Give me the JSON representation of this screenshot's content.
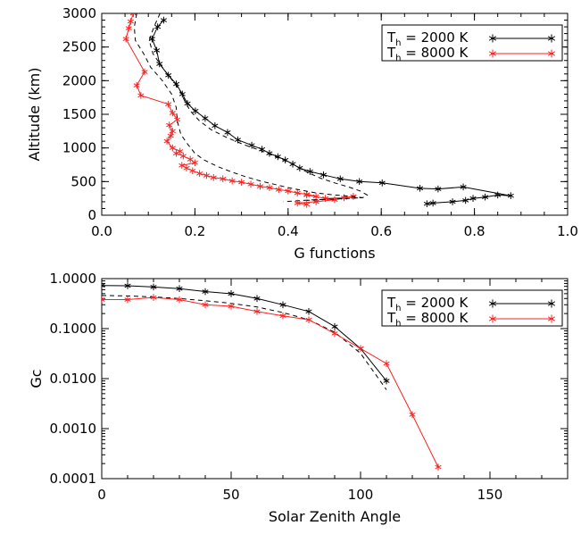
{
  "colors": {
    "black": "#000000",
    "red": "#ff2020"
  },
  "chart_data": [
    {
      "type": "line",
      "xlabel": "G functions",
      "ylabel": "Altitude (km)",
      "xlim": [
        0.0,
        1.0
      ],
      "ylim": [
        0,
        3000
      ],
      "xticks": [
        "0.0",
        "0.2",
        "0.4",
        "0.6",
        "0.8",
        "1.0"
      ],
      "yticks": [
        "0",
        "500",
        "1000",
        "1500",
        "2000",
        "2500",
        "3000"
      ],
      "legend_position": "top-right",
      "legend": [
        {
          "label": "T",
          "sub": "h",
          "rest": " = 2000 K",
          "color": "#000000"
        },
        {
          "label": "T",
          "sub": "h",
          "rest": " = 8000 K",
          "color": "#ff2020"
        }
      ],
      "series": [
        {
          "color": "#000000",
          "marker": "asterisk",
          "x": [
            0.133,
            0.12,
            0.108,
            0.118,
            0.124,
            0.143,
            0.16,
            0.173,
            0.184,
            0.201,
            0.222,
            0.243,
            0.27,
            0.292,
            0.322,
            0.344,
            0.36,
            0.378,
            0.394,
            0.41,
            0.425,
            0.447,
            0.476,
            0.512,
            0.553,
            0.602,
            0.683,
            0.722,
            0.776,
            0.878,
            0.85,
            0.823,
            0.797,
            0.781,
            0.753,
            0.711,
            0.698
          ],
          "y": [
            2900,
            2800,
            2620,
            2450,
            2250,
            2080,
            1950,
            1800,
            1660,
            1550,
            1440,
            1330,
            1230,
            1120,
            1040,
            980,
            920,
            870,
            820,
            760,
            700,
            650,
            600,
            540,
            500,
            480,
            400,
            390,
            420,
            290,
            300,
            270,
            250,
            220,
            200,
            180,
            170
          ]
        },
        {
          "color": "#000000",
          "dashed": true,
          "marker": "none",
          "x": [
            0.125,
            0.112,
            0.102,
            0.11,
            0.13,
            0.152,
            0.168,
            0.178,
            0.19,
            0.21,
            0.235,
            0.27,
            0.305,
            0.345,
            0.38,
            0.41,
            0.43,
            0.45,
            0.47,
            0.5,
            0.53,
            0.555,
            0.57,
            0.56,
            0.49,
            0.43,
            0.39
          ],
          "y": [
            3000,
            2800,
            2600,
            2400,
            2200,
            2000,
            1850,
            1700,
            1550,
            1400,
            1270,
            1150,
            1050,
            950,
            850,
            760,
            680,
            610,
            550,
            480,
            420,
            360,
            300,
            260,
            240,
            220,
            200
          ]
        },
        {
          "color": "#ff2020",
          "marker": "asterisk",
          "x": [
            0.068,
            0.062,
            0.058,
            0.052,
            0.092,
            0.075,
            0.084,
            0.143,
            0.152,
            0.162,
            0.145,
            0.152,
            0.148,
            0.14,
            0.152,
            0.168,
            0.16,
            0.175,
            0.19,
            0.2,
            0.172,
            0.182,
            0.195,
            0.21,
            0.225,
            0.24,
            0.26,
            0.28,
            0.3,
            0.32,
            0.34,
            0.36,
            0.38,
            0.4,
            0.42,
            0.44,
            0.46,
            0.44,
            0.48,
            0.52,
            0.54,
            0.5,
            0.46,
            0.42,
            0.44
          ],
          "y": [
            3000,
            2880,
            2780,
            2620,
            2130,
            1930,
            1780,
            1650,
            1520,
            1420,
            1340,
            1250,
            1180,
            1100,
            1000,
            950,
            920,
            880,
            830,
            780,
            740,
            700,
            660,
            620,
            590,
            560,
            540,
            510,
            490,
            460,
            430,
            410,
            380,
            360,
            330,
            310,
            280,
            300,
            250,
            260,
            280,
            230,
            200,
            180,
            160
          ]
        },
        {
          "color": "#000000",
          "dashed": true,
          "marker": "none",
          "x": [
            0.075,
            0.07,
            0.072,
            0.09,
            0.105,
            0.13,
            0.15,
            0.16,
            0.162,
            0.17,
            0.185,
            0.2,
            0.22,
            0.25,
            0.28,
            0.31,
            0.34,
            0.37,
            0.4,
            0.43,
            0.46,
            0.5,
            0.54,
            0.56,
            0.5,
            0.44
          ],
          "y": [
            3000,
            2800,
            2600,
            2400,
            2200,
            2000,
            1800,
            1600,
            1400,
            1200,
            1050,
            920,
            820,
            720,
            640,
            570,
            510,
            460,
            410,
            370,
            330,
            300,
            280,
            260,
            240,
            220
          ]
        }
      ]
    },
    {
      "type": "line",
      "xlabel": "Solar Zenith Angle",
      "ylabel": "Gc",
      "xlim": [
        0,
        180
      ],
      "ylim": [
        0.0001,
        1.0
      ],
      "yscale": "log",
      "xticks": [
        "0",
        "50",
        "100",
        "150"
      ],
      "yticks": [
        "0.0001",
        "0.0010",
        "0.0100",
        "0.1000",
        "1.0000"
      ],
      "legend_position": "top-right",
      "legend": [
        {
          "label": "T",
          "sub": "h",
          "rest": " = 2000 K",
          "color": "#000000"
        },
        {
          "label": "T",
          "sub": "h",
          "rest": " = 8000 K",
          "color": "#ff2020"
        }
      ],
      "series": [
        {
          "color": "#000000",
          "marker": "asterisk",
          "x": [
            0,
            10,
            20,
            30,
            40,
            50,
            60,
            70,
            80,
            90,
            100,
            110
          ],
          "y": [
            0.73,
            0.72,
            0.68,
            0.63,
            0.55,
            0.5,
            0.4,
            0.3,
            0.22,
            0.11,
            0.04,
            0.009
          ]
        },
        {
          "color": "#000000",
          "dashed": true,
          "marker": "none",
          "x": [
            0,
            10,
            20,
            30,
            40,
            50,
            60,
            70,
            80,
            90,
            100,
            110
          ],
          "y": [
            0.46,
            0.45,
            0.43,
            0.4,
            0.36,
            0.32,
            0.27,
            0.21,
            0.15,
            0.085,
            0.032,
            0.006
          ]
        },
        {
          "color": "#ff2020",
          "marker": "asterisk",
          "x": [
            0,
            10,
            20,
            30,
            40,
            50,
            60,
            70,
            80,
            90,
            100,
            110,
            120,
            130
          ],
          "y": [
            0.38,
            0.38,
            0.42,
            0.38,
            0.3,
            0.28,
            0.22,
            0.18,
            0.15,
            0.08,
            0.04,
            0.02,
            0.0019,
            0.00017
          ]
        }
      ]
    }
  ]
}
